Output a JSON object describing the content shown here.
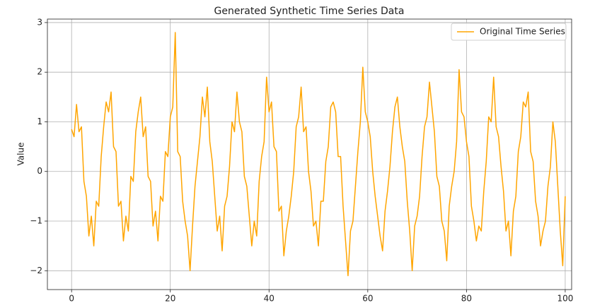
{
  "chart_data": {
    "type": "line",
    "title": "Generated Synthetic Time Series Data",
    "ylabel": "Value",
    "legend": "upper right",
    "grid": true,
    "xlim": [
      -4.9,
      101.3
    ],
    "ylim": [
      -2.38,
      3.07
    ],
    "xticks": [
      0,
      20,
      40,
      60,
      80,
      100
    ],
    "yticks": [
      {
        "value": -2,
        "label": "−2"
      },
      {
        "value": -1,
        "label": "−1"
      },
      0,
      1,
      2,
      3
    ],
    "x": [
      0,
      0.5,
      1,
      1.5,
      2,
      2.5,
      3,
      3.5,
      4,
      4.5,
      5,
      5.5,
      6,
      6.5,
      7,
      7.5,
      8,
      8.5,
      9,
      9.5,
      10,
      10.5,
      11,
      11.5,
      12,
      12.5,
      13,
      13.5,
      14,
      14.5,
      15,
      15.5,
      16,
      16.5,
      17,
      17.5,
      18,
      18.5,
      19,
      19.5,
      20,
      20.5,
      21,
      21.5,
      22,
      22.5,
      23,
      23.5,
      24,
      24.5,
      25,
      25.5,
      26,
      26.5,
      27,
      27.5,
      28,
      28.5,
      29,
      29.5,
      30,
      30.5,
      31,
      31.5,
      32,
      32.5,
      33,
      33.5,
      34,
      34.5,
      35,
      35.5,
      36,
      36.5,
      37,
      37.5,
      38,
      38.5,
      39,
      39.5,
      40,
      40.5,
      41,
      41.5,
      42,
      42.5,
      43,
      43.5,
      44,
      44.5,
      45,
      45.5,
      46,
      46.5,
      47,
      47.5,
      48,
      48.5,
      49,
      49.5,
      50,
      50.5,
      51,
      51.5,
      52,
      52.5,
      53,
      53.5,
      54,
      54.5,
      55,
      55.5,
      56,
      56.5,
      57,
      57.5,
      58,
      58.5,
      59,
      59.5,
      60,
      60.5,
      61,
      61.5,
      62,
      62.5,
      63,
      63.5,
      64,
      64.5,
      65,
      65.5,
      66,
      66.5,
      67,
      67.5,
      68,
      68.5,
      69,
      69.5,
      70,
      70.5,
      71,
      71.5,
      72,
      72.5,
      73,
      73.5,
      74,
      74.5,
      75,
      75.5,
      76,
      76.5,
      77,
      77.5,
      78,
      78.5,
      79,
      79.5,
      80,
      80.5,
      81,
      81.5,
      82,
      82.5,
      83,
      83.5,
      84,
      84.5,
      85,
      85.5,
      86,
      86.5,
      87,
      87.5,
      88,
      88.5,
      89,
      89.5,
      90,
      90.5,
      91,
      91.5,
      92,
      92.5,
      93,
      93.5,
      94,
      94.5,
      95,
      95.5,
      96,
      96.5,
      97,
      97.5,
      98,
      98.5,
      99,
      99.5,
      100
    ],
    "series": [
      {
        "name": "Original Time Series",
        "color": "#ffa500",
        "values": [
          0.85,
          0.7,
          1.35,
          0.8,
          0.9,
          -0.2,
          -0.5,
          -1.3,
          -0.9,
          -1.5,
          -0.6,
          -0.7,
          0.3,
          0.9,
          1.4,
          1.2,
          1.6,
          0.5,
          0.4,
          -0.7,
          -0.6,
          -1.4,
          -0.9,
          -1.2,
          -0.1,
          -0.2,
          0.8,
          1.2,
          1.5,
          0.7,
          0.9,
          -0.1,
          -0.2,
          -1.1,
          -0.8,
          -1.4,
          -0.5,
          -0.6,
          0.4,
          0.3,
          1.1,
          1.3,
          2.8,
          0.4,
          0.3,
          -0.6,
          -1.0,
          -1.3,
          -2.0,
          -1.1,
          -0.3,
          0.2,
          0.7,
          1.5,
          1.1,
          1.7,
          0.6,
          0.2,
          -0.5,
          -1.2,
          -0.9,
          -1.6,
          -0.7,
          -0.5,
          0.1,
          1.0,
          0.8,
          1.6,
          1.0,
          0.8,
          -0.1,
          -0.3,
          -0.9,
          -1.5,
          -1.0,
          -1.3,
          -0.2,
          0.3,
          0.6,
          1.9,
          1.2,
          1.4,
          0.5,
          0.4,
          -0.8,
          -0.7,
          -1.7,
          -1.2,
          -0.9,
          -0.5,
          0,
          0.9,
          1.1,
          1.7,
          0.8,
          0.9,
          0,
          -0.4,
          -1.1,
          -1.0,
          -1.5,
          -0.6,
          -0.6,
          0.2,
          0.5,
          1.3,
          1.4,
          1.2,
          0.3,
          0.3,
          -0.7,
          -1.4,
          -2.1,
          -1.2,
          -1.0,
          -0.3,
          0.4,
          1.0,
          2.1,
          1.2,
          1.0,
          0.7,
          0,
          -0.5,
          -0.9,
          -1.3,
          -1.6,
          -0.8,
          -0.4,
          0.1,
          0.8,
          1.3,
          1.5,
          0.9,
          0.5,
          0.2,
          -0.6,
          -1.2,
          -2.0,
          -1.1,
          -0.9,
          -0.5,
          0.3,
          0.9,
          1.1,
          1.8,
          1.3,
          0.8,
          -0.1,
          -0.3,
          -1.0,
          -1.2,
          -1.8,
          -0.7,
          -0.3,
          0,
          0.6,
          2.05,
          1.2,
          1.1,
          0.6,
          0.3,
          -0.7,
          -1.0,
          -1.4,
          -1.1,
          -1.2,
          -0.4,
          0.2,
          1.1,
          1.0,
          1.9,
          0.9,
          0.7,
          0.1,
          -0.4,
          -1.2,
          -1.0,
          -1.7,
          -0.8,
          -0.5,
          0.4,
          0.7,
          1.4,
          1.3,
          1.6,
          0.4,
          0.2,
          -0.6,
          -0.9,
          -1.5,
          -1.2,
          -1.0,
          -0.3,
          0.1,
          1.0,
          0.6,
          -0.3,
          -1.2,
          -1.9,
          -0.5
        ]
      }
    ]
  }
}
